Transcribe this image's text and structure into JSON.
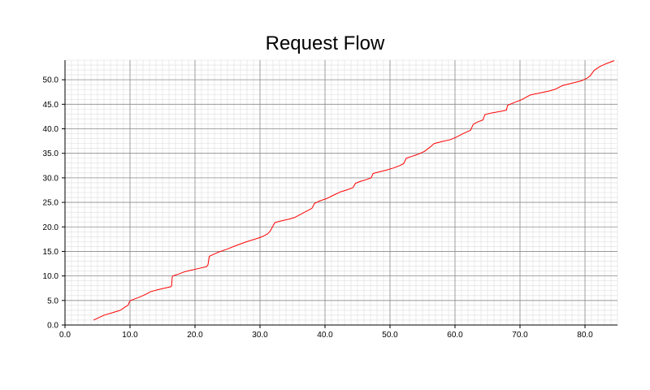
{
  "chart_data": {
    "type": "line",
    "title": "Request Flow",
    "xlabel": "",
    "ylabel": "",
    "xlim": [
      0,
      85
    ],
    "ylim": [
      0,
      54
    ],
    "x_ticks": [
      0,
      10,
      20,
      30,
      40,
      50,
      60,
      70,
      80
    ],
    "y_ticks": [
      0,
      5,
      10,
      15,
      20,
      25,
      30,
      35,
      40,
      45,
      50
    ],
    "x_tick_labels": [
      "0.0",
      "10.0",
      "20.0",
      "30.0",
      "40.0",
      "50.0",
      "60.0",
      "70.0",
      "80.0"
    ],
    "y_tick_labels": [
      "0.0",
      "5.0",
      "10.0",
      "15.0",
      "20.0",
      "25.0",
      "30.0",
      "35.0",
      "40.0",
      "45.0",
      "50.0"
    ],
    "grid": true,
    "minor_step": 1,
    "series": [
      {
        "color": "#ff0000",
        "points": [
          [
            4.4,
            1
          ],
          [
            6.0,
            2
          ],
          [
            7.3,
            2.5
          ],
          [
            8.5,
            3
          ],
          [
            9.4,
            3.8
          ],
          [
            9.7,
            4.0
          ],
          [
            9.9,
            4.7
          ],
          [
            10.1,
            5
          ],
          [
            11.5,
            5.7
          ],
          [
            12.5,
            6.3
          ],
          [
            13.2,
            6.8
          ],
          [
            14.3,
            7.2
          ],
          [
            15.6,
            7.6
          ],
          [
            16.3,
            7.8
          ],
          [
            16.4,
            8
          ],
          [
            16.5,
            9.8
          ],
          [
            16.6,
            10
          ],
          [
            17.5,
            10.4
          ],
          [
            18.5,
            10.9
          ],
          [
            19.5,
            11.2
          ],
          [
            20.5,
            11.5
          ],
          [
            21.8,
            11.9
          ],
          [
            22.0,
            12.3
          ],
          [
            22.2,
            14
          ],
          [
            23.5,
            14.8
          ],
          [
            25.0,
            15.5
          ],
          [
            26.5,
            16.3
          ],
          [
            28.0,
            17.0
          ],
          [
            29.7,
            17.7
          ],
          [
            30.5,
            18.1
          ],
          [
            31.2,
            18.6
          ],
          [
            31.6,
            19.2
          ],
          [
            32.0,
            20.2
          ],
          [
            32.3,
            20.9
          ],
          [
            33.2,
            21.2
          ],
          [
            34.5,
            21.6
          ],
          [
            35.3,
            21.9
          ],
          [
            36.3,
            22.6
          ],
          [
            37.3,
            23.3
          ],
          [
            38.0,
            23.8
          ],
          [
            38.4,
            24.8
          ],
          [
            39.2,
            25.3
          ],
          [
            40.3,
            25.8
          ],
          [
            41.2,
            26.4
          ],
          [
            42.3,
            27.1
          ],
          [
            43.5,
            27.6
          ],
          [
            44.3,
            28.0
          ],
          [
            44.7,
            28.9
          ],
          [
            45.5,
            29.3
          ],
          [
            46.5,
            29.7
          ],
          [
            47.1,
            30.0
          ],
          [
            47.4,
            30.9
          ],
          [
            48.3,
            31.2
          ],
          [
            49.5,
            31.6
          ],
          [
            50.5,
            32.0
          ],
          [
            51.5,
            32.5
          ],
          [
            52.1,
            32.9
          ],
          [
            52.5,
            34.0
          ],
          [
            53.4,
            34.4
          ],
          [
            54.3,
            34.8
          ],
          [
            55.3,
            35.4
          ],
          [
            56.1,
            36.2
          ],
          [
            56.8,
            37.0
          ],
          [
            58.0,
            37.4
          ],
          [
            59.3,
            37.8
          ],
          [
            60.2,
            38.3
          ],
          [
            61.2,
            39.0
          ],
          [
            62.4,
            39.7
          ],
          [
            62.8,
            40.9
          ],
          [
            63.5,
            41.4
          ],
          [
            64.3,
            41.8
          ],
          [
            64.6,
            42.9
          ],
          [
            65.5,
            43.2
          ],
          [
            66.8,
            43.5
          ],
          [
            67.9,
            43.8
          ],
          [
            68.1,
            44.8
          ],
          [
            69.2,
            45.4
          ],
          [
            70.2,
            45.9
          ],
          [
            71.6,
            46.9
          ],
          [
            73.0,
            47.3
          ],
          [
            74.5,
            47.7
          ],
          [
            75.5,
            48.1
          ],
          [
            76.5,
            48.8
          ],
          [
            78.0,
            49.3
          ],
          [
            79.5,
            49.8
          ],
          [
            80.3,
            50.3
          ],
          [
            80.8,
            50.8
          ],
          [
            81.4,
            51.9
          ],
          [
            82.3,
            52.7
          ],
          [
            83.3,
            53.3
          ],
          [
            84.5,
            53.9
          ]
        ]
      }
    ]
  }
}
